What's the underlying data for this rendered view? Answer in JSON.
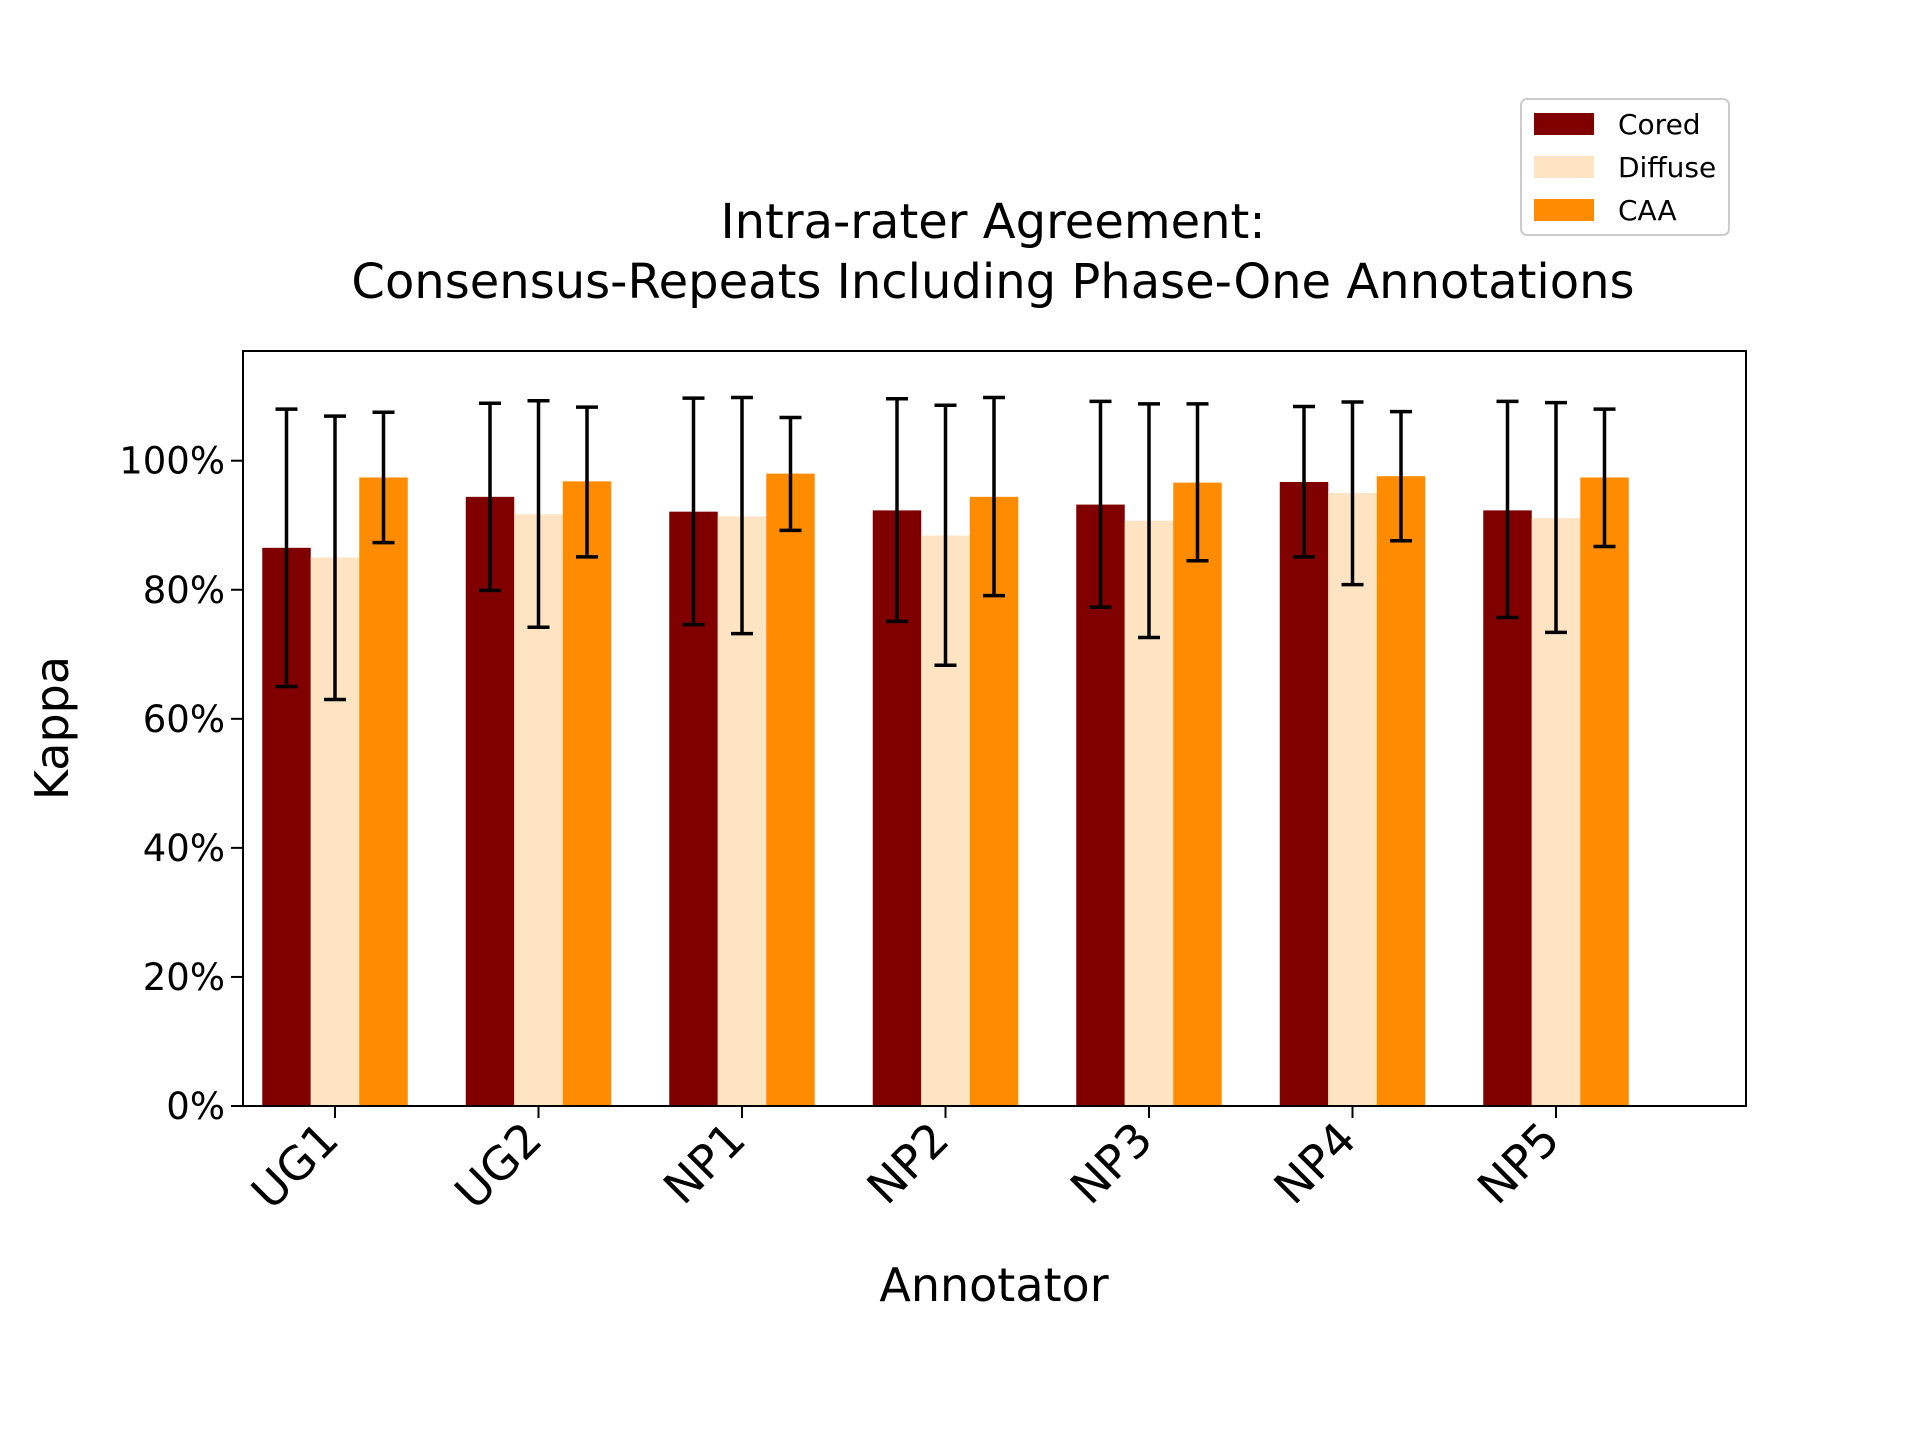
{
  "chart_data": {
    "type": "bar",
    "title_lines": [
      "Intra-rater Agreement:",
      "Consensus-Repeats Including Phase-One Annotations"
    ],
    "xlabel": "Annotator",
    "ylabel": "Kappa",
    "categories": [
      "UG1",
      "UG2",
      "NP1",
      "NP2",
      "NP3",
      "NP4",
      "NP5"
    ],
    "y_ticks": [
      0,
      20,
      40,
      60,
      80,
      100
    ],
    "y_tick_labels": [
      "0%",
      "20%",
      "40%",
      "60%",
      "80%",
      "100%"
    ],
    "ylim": [
      0,
      117
    ],
    "grid": false,
    "legend_position": "top-right",
    "series": [
      {
        "name": "Cored",
        "color": "#800000",
        "values": [
          86.5,
          94.4,
          92.1,
          92.3,
          93.2,
          96.7,
          92.3
        ],
        "err_low": [
          65.0,
          79.9,
          74.6,
          75.1,
          77.3,
          85.1,
          75.7
        ],
        "err_high": [
          108.0,
          108.9,
          109.7,
          109.6,
          109.2,
          108.4,
          109.2
        ]
      },
      {
        "name": "Diffuse",
        "color": "#ffe4c4",
        "values": [
          85.0,
          91.7,
          91.4,
          88.4,
          90.7,
          95.0,
          91.1
        ],
        "err_low": [
          63.0,
          74.2,
          73.2,
          68.3,
          72.6,
          80.8,
          73.4
        ],
        "err_high": [
          106.9,
          109.3,
          109.8,
          108.6,
          108.8,
          109.1,
          109.0
        ]
      },
      {
        "name": "CAA",
        "color": "#ff8c00",
        "values": [
          97.4,
          96.8,
          98.0,
          94.4,
          96.6,
          97.6,
          97.4
        ],
        "err_low": [
          87.3,
          85.1,
          89.2,
          79.1,
          84.5,
          87.6,
          86.7
        ],
        "err_high": [
          107.5,
          108.3,
          106.7,
          109.8,
          108.8,
          107.6,
          108.0
        ]
      }
    ]
  }
}
